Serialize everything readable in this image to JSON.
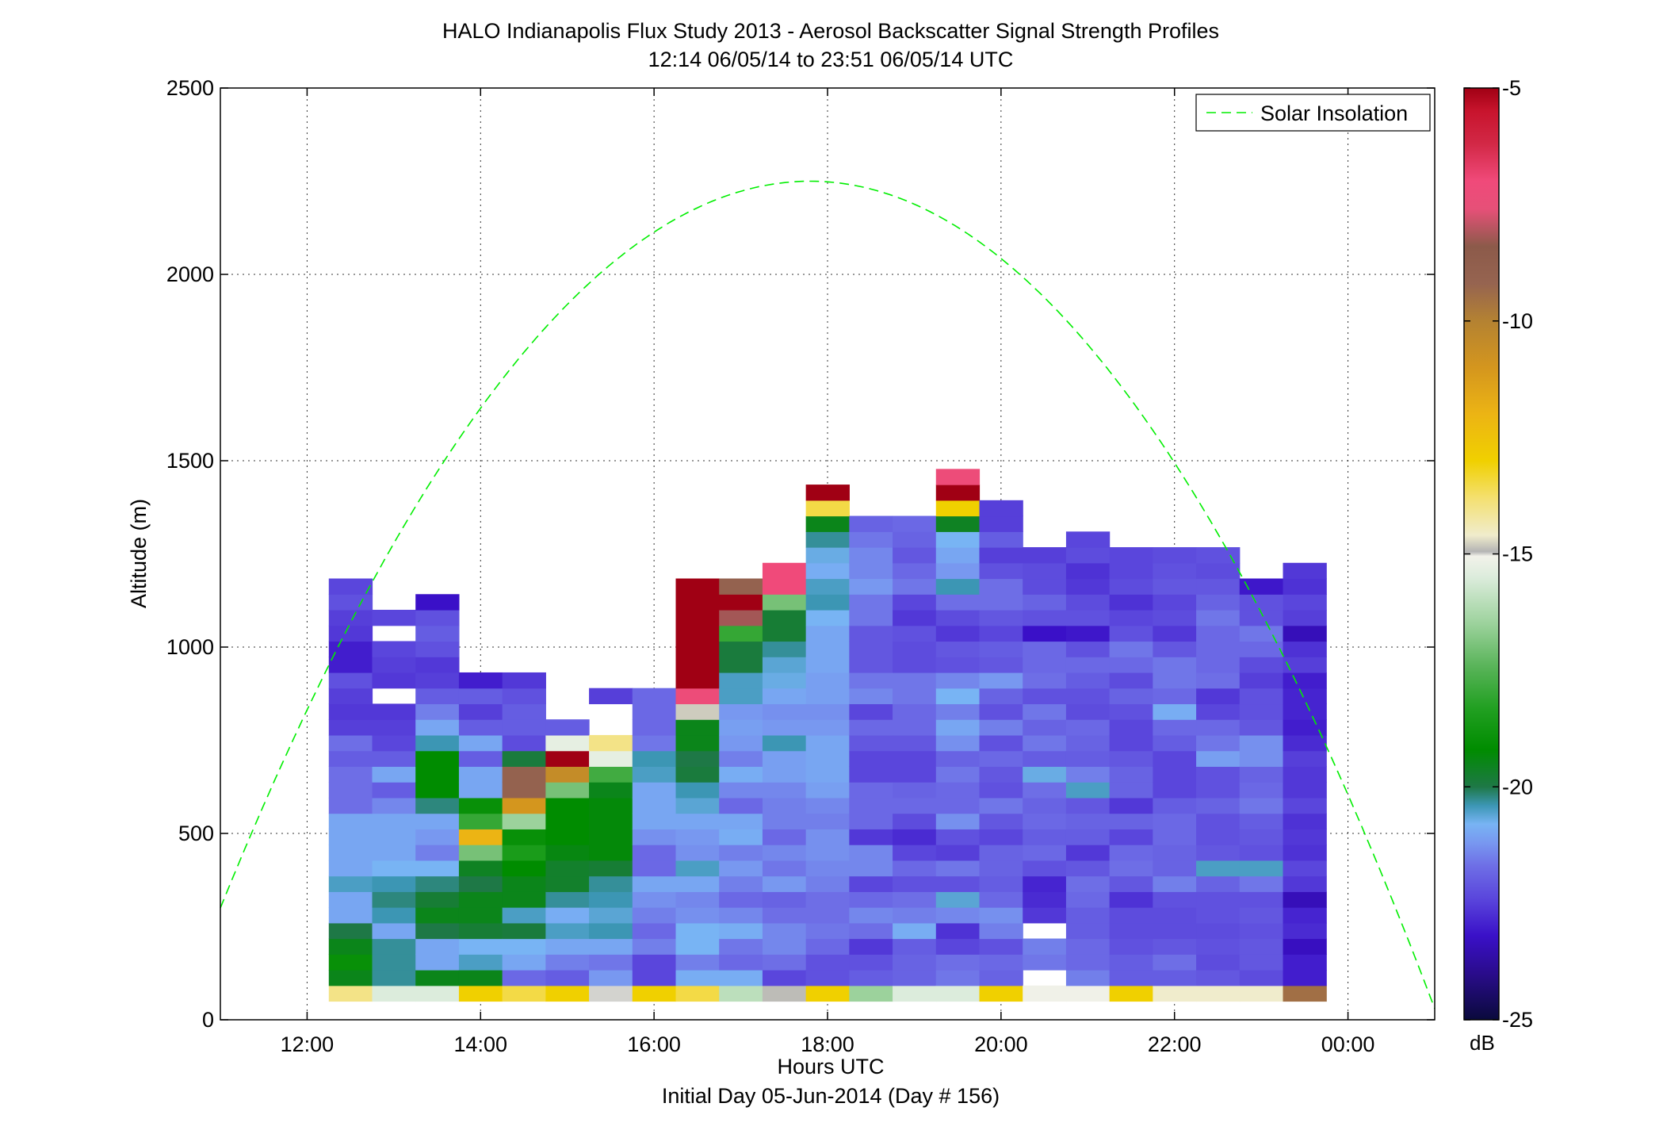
{
  "chart_data": {
    "type": "heatmap",
    "title": "HALO Indianapolis Flux Study 2013 - Aerosol Backscatter Signal Strength Profiles",
    "subtitle": "12:14 06/05/14 to 23:51 06/05/14  UTC",
    "xlabel": "Hours UTC",
    "xlabel2": "Initial Day 05-Jun-2014 (Day # 156)",
    "ylabel": "Altitude (m)",
    "xlim": [
      11,
      25
    ],
    "ylim": [
      0,
      2500
    ],
    "grid": true,
    "x_ticks": [
      {
        "value": 12,
        "label": "12:00"
      },
      {
        "value": 14,
        "label": "14:00"
      },
      {
        "value": 16,
        "label": "16:00"
      },
      {
        "value": 18,
        "label": "18:00"
      },
      {
        "value": 20,
        "label": "20:00"
      },
      {
        "value": 22,
        "label": "22:00"
      },
      {
        "value": 24,
        "label": "00:00"
      }
    ],
    "y_ticks": [
      {
        "value": 0,
        "label": "0"
      },
      {
        "value": 500,
        "label": "500"
      },
      {
        "value": 1000,
        "label": "1000"
      },
      {
        "value": 1500,
        "label": "1500"
      },
      {
        "value": 2000,
        "label": "2000"
      },
      {
        "value": 2500,
        "label": "2500"
      }
    ],
    "legend": {
      "placement": "top-right",
      "entries": [
        {
          "name": "Solar Insolation",
          "style": "dashed",
          "color": "#00ee00"
        }
      ]
    },
    "solar_insolation": {
      "x_start": 11,
      "x_end": 25,
      "peak_x": 17.8,
      "peak_y": 2250,
      "y_at_start": 300,
      "y_at_end": 30
    },
    "colorbar": {
      "label": "dB",
      "vmin": -25,
      "vmax": -5,
      "ticks": [
        {
          "value": -5,
          "label": "-5"
        },
        {
          "value": -10,
          "label": "-10"
        },
        {
          "value": -15,
          "label": "-15"
        },
        {
          "value": -20,
          "label": "-20"
        },
        {
          "value": -25,
          "label": "-25"
        }
      ],
      "stops": [
        [
          -25,
          "#0a0a3c"
        ],
        [
          -24,
          "#2a0c8c"
        ],
        [
          -23.2,
          "#3a10c8"
        ],
        [
          -22.4,
          "#5a46dc"
        ],
        [
          -21.7,
          "#6e6ee6"
        ],
        [
          -21.2,
          "#7898f0"
        ],
        [
          -20.8,
          "#78b4f4"
        ],
        [
          -20.4,
          "#3c96b4"
        ],
        [
          -20,
          "#1e7846"
        ],
        [
          -19.2,
          "#008c00"
        ],
        [
          -18.3,
          "#22a022"
        ],
        [
          -17.4,
          "#5ab45a"
        ],
        [
          -16.5,
          "#9cd29c"
        ],
        [
          -15.5,
          "#dcecdc"
        ],
        [
          -15.05,
          "#f2f2ea"
        ],
        [
          -14.95,
          "#b4b4b4"
        ],
        [
          -14.6,
          "#f0eccc"
        ],
        [
          -13.8,
          "#f4e070"
        ],
        [
          -13,
          "#f0d000"
        ],
        [
          -12,
          "#ecb414"
        ],
        [
          -11,
          "#d4961e"
        ],
        [
          -10,
          "#b48232"
        ],
        [
          -9.2,
          "#966450"
        ],
        [
          -8.4,
          "#8c5a4a"
        ],
        [
          -7.6,
          "#e65078"
        ],
        [
          -7,
          "#f04a7a"
        ],
        [
          -6.2,
          "#d22846"
        ],
        [
          -5.5,
          "#c8142d"
        ],
        [
          -5,
          "#a00014"
        ]
      ]
    },
    "cell_height_m": 42,
    "row_bottoms_m": [
      50,
      92,
      134,
      176,
      218,
      260,
      302,
      344,
      386,
      428,
      470,
      512,
      554,
      596,
      638,
      680,
      722,
      764,
      806,
      848,
      890,
      932,
      974,
      1016,
      1058,
      1100,
      1142,
      1184,
      1226,
      1268,
      1310,
      1352,
      1394,
      1436,
      1478,
      1520
    ],
    "columns": [
      {
        "time_start": 12.25,
        "time_end": 12.75,
        "db": [
          -14,
          -19.5,
          -19,
          -19.5,
          -20,
          -21,
          -21,
          -20.5,
          -21,
          -21,
          -21,
          -21,
          -21.7,
          -21.7,
          -21.7,
          -22,
          -21.7,
          -22.5,
          -22.6,
          -22.5,
          -22.2,
          -23,
          -23,
          -22.6,
          -22.5,
          -22.2,
          -22.4
        ]
      },
      {
        "time_start": 12.75,
        "time_end": 13.25,
        "db": [
          -15.5,
          -20.3,
          -20.3,
          -20.3,
          -21,
          -20.4,
          -20.2,
          -20.4,
          -20.8,
          -21,
          -21,
          -21,
          -21.4,
          -22,
          -21,
          -22,
          -22.4,
          -22.5,
          -22.6,
          null,
          -22.6,
          -22.5,
          -22.4,
          null,
          -22.4
        ]
      },
      {
        "time_start": 13.25,
        "time_end": 13.75,
        "db": [
          -15.5,
          -19.5,
          -21,
          -21,
          -20,
          -19.5,
          -19.8,
          -20.2,
          -20.8,
          -21.5,
          -21.2,
          -21,
          -20.2,
          -19.2,
          -19.2,
          -19.2,
          -20.4,
          -21,
          -21.5,
          -22,
          -22.5,
          -22.6,
          -22.2,
          -22,
          -22.2,
          -23.2
        ]
      },
      {
        "time_start": 13.75,
        "time_end": 14.25,
        "db": [
          -13,
          -19.5,
          -20.5,
          -20.8,
          -19.8,
          -19.5,
          -19.5,
          -20,
          -19.6,
          -17,
          -12,
          -18,
          -19,
          -21,
          -21,
          -22,
          -21,
          -22,
          -22.5,
          -22,
          -23
        ]
      },
      {
        "time_start": 14.25,
        "time_end": 14.75,
        "db": [
          -13.5,
          -21.8,
          -21,
          -20.8,
          -19.9,
          -20.5,
          -19.5,
          -19.5,
          -19.2,
          -18.5,
          -19,
          -16.5,
          -11,
          -9,
          -9,
          -19.9,
          -22.3,
          -22,
          -22,
          -22.2,
          -22.6
        ]
      },
      {
        "time_start": 14.75,
        "time_end": 15.25,
        "db": [
          -13,
          -22,
          -21.5,
          -21,
          -20.5,
          -20.9,
          -20.3,
          -19.7,
          -19.7,
          -19.4,
          -19.2,
          -19.2,
          -19.2,
          -17,
          -10.5,
          -5,
          -15.3,
          -22
        ]
      },
      {
        "time_start": 15.25,
        "time_end": 15.75,
        "db": [
          -15,
          -21.2,
          -21.6,
          -21,
          -20.4,
          -20.6,
          -20.4,
          -20.3,
          -19.8,
          -19.3,
          -19.3,
          -19.3,
          -19.3,
          -19.5,
          -17.8,
          -15.3,
          -14,
          null,
          null,
          -22.5
        ]
      },
      {
        "time_start": 15.75,
        "time_end": 16.25,
        "db": [
          -13,
          -22.4,
          -22.4,
          -21.5,
          -21.8,
          -21.5,
          -21.3,
          -21,
          -21.8,
          -21.8,
          -21.3,
          -21,
          -21,
          -21,
          -20.5,
          -20.4,
          -21.6,
          -21.8,
          -21.8,
          -21.8
        ]
      },
      {
        "time_start": 16.25,
        "time_end": 16.75,
        "db": [
          -13.5,
          -20.9,
          -21.5,
          -20.8,
          -20.8,
          -21.3,
          -21.4,
          -21,
          -20.5,
          -21.3,
          -21.2,
          -21,
          -20.6,
          -20.4,
          -19.9,
          -20,
          -19.5,
          -19.5,
          -14.8,
          -7.2,
          -5,
          -5,
          -5,
          -5,
          -5,
          -5,
          -5
        ]
      },
      {
        "time_start": 16.75,
        "time_end": 17.25,
        "db": [
          -16,
          -20.9,
          -21.8,
          -21.6,
          -20.9,
          -21.4,
          -21.8,
          -21.5,
          -21.2,
          -21.5,
          -20.9,
          -21,
          -21.8,
          -21.4,
          -20.9,
          -21.5,
          -21.2,
          -21.1,
          -21.2,
          -20.5,
          -20.5,
          -19.9,
          -19.9,
          -18,
          -8.2,
          -5,
          -9
        ]
      },
      {
        "time_start": 17.25,
        "time_end": 17.75,
        "db": [
          -14.9,
          -22.4,
          -21.7,
          -21.4,
          -21.4,
          -21.7,
          -21.9,
          -21.2,
          -21.6,
          -21.4,
          -21.8,
          -21.5,
          -21.5,
          -21.4,
          -21.1,
          -21.1,
          -20.4,
          -21.2,
          -21.3,
          -21,
          -20.7,
          -20.6,
          -20.3,
          -19.8,
          -19.8,
          -17,
          -7,
          -7
        ]
      },
      {
        "time_start": 17.75,
        "time_end": 18.25,
        "db": [
          -13,
          -22.2,
          -22.2,
          -21.8,
          -21.6,
          -21.7,
          -21.7,
          -21.5,
          -21.4,
          -21.3,
          -21.3,
          -21.5,
          -21.4,
          -21.1,
          -21,
          -21,
          -21,
          -21.2,
          -21.3,
          -21.1,
          -21.1,
          -21,
          -21,
          -21,
          -20.8,
          -20.4,
          -20.5,
          -20.9,
          -20.7,
          -20.3,
          -19.5,
          -13.5,
          -5
        ]
      },
      {
        "time_start": 18.25,
        "time_end": 18.75,
        "db": [
          -16.5,
          -22,
          -22.2,
          -22.6,
          -21.7,
          -21.4,
          -21.8,
          -22.4,
          -21.4,
          -21.4,
          -22.6,
          -21.8,
          -21.8,
          -21.8,
          -22.4,
          -22.4,
          -22.1,
          -21.8,
          -22.4,
          -21.4,
          -21.6,
          -22.1,
          -22.1,
          -22.1,
          -21.6,
          -21.6,
          -21.2,
          -21.4,
          -21.4,
          -21.6,
          -21.9
        ]
      },
      {
        "time_start": 18.75,
        "time_end": 19.25,
        "db": [
          -15.5,
          -21.9,
          -21.9,
          -22,
          -20.9,
          -21.5,
          -21.7,
          -22.2,
          -21.8,
          -22.4,
          -22.8,
          -22.3,
          -21.8,
          -21.9,
          -22.4,
          -22.4,
          -22.1,
          -21.8,
          -21.8,
          -21.6,
          -21.6,
          -22.3,
          -22.3,
          -22.2,
          -22.6,
          -22.4,
          -21.6,
          -21.8,
          -22.1,
          -21.9,
          -21.8
        ]
      },
      {
        "time_start": 19.25,
        "time_end": 19.75,
        "db": [
          -15.5,
          -21.6,
          -21.7,
          -22.4,
          -22.7,
          -21.4,
          -20.6,
          -22.2,
          -21.6,
          -22.5,
          -22.2,
          -21.3,
          -21.8,
          -21.8,
          -21.6,
          -21.9,
          -21.3,
          -21,
          -21.5,
          -20.8,
          -21.4,
          -22.2,
          -22.1,
          -22.6,
          -22.3,
          -21.7,
          -20.4,
          -21.2,
          -21,
          -20.8,
          -19.6,
          -13,
          -5,
          -7.2
        ]
      },
      {
        "time_start": 19.75,
        "time_end": 20.25,
        "db": [
          -13,
          -21.9,
          -21.8,
          -22.2,
          -21.5,
          -21.3,
          -21.8,
          -22,
          -21.9,
          -21.9,
          -22.4,
          -22.1,
          -21.6,
          -22.2,
          -22.1,
          -21.8,
          -22.2,
          -21.5,
          -22.2,
          -21.9,
          -21.2,
          -22.1,
          -22,
          -22.4,
          -22.1,
          -21.7,
          -21.7,
          -22.2,
          -22.5,
          -22,
          -22.5,
          -22.5
        ]
      },
      {
        "time_start": 20.25,
        "time_end": 20.75,
        "db": [
          -15.1,
          null,
          -21.6,
          -21.5,
          null,
          -22.6,
          -22.8,
          -22.9,
          -22.2,
          -21.8,
          -22,
          -21.8,
          -21.9,
          -21.7,
          -20.7,
          -22,
          -21.6,
          -21.9,
          -21.6,
          -22.2,
          -21.7,
          -21.8,
          -21.8,
          -23.2,
          -22.2,
          -21.9,
          -22.3,
          -22.3,
          -22.5
        ]
      },
      {
        "time_start": 20.75,
        "time_end": 21.25,
        "db": [
          -15.1,
          -21.5,
          -21.8,
          -21.8,
          -22,
          -22,
          -21.8,
          -21.7,
          -22.1,
          -22.6,
          -22,
          -21.9,
          -22.1,
          -20.5,
          -21.5,
          -22,
          -21.9,
          -21.8,
          -22.3,
          -22.2,
          -22,
          -21.8,
          -22.2,
          -23.1,
          -22.2,
          -22.3,
          -22.6,
          -22.7,
          -22.3,
          -22.4
        ]
      },
      {
        "time_start": 21.25,
        "time_end": 21.75,
        "db": [
          -13,
          -22,
          -22,
          -22.2,
          -22.3,
          -22.3,
          -22.7,
          -22.1,
          -21.7,
          -21.8,
          -22.4,
          -21.9,
          -22.6,
          -21.9,
          -21.9,
          -22.1,
          -22.4,
          -22.4,
          -22.2,
          -21.9,
          -22.3,
          -21.8,
          -21.6,
          -22.2,
          -22.4,
          -22.7,
          -22.3,
          -22.4,
          -22.4
        ]
      },
      {
        "time_start": 21.75,
        "time_end": 22.25,
        "db": [
          -14.6,
          -22,
          -21.7,
          -22.1,
          -22.3,
          -22.3,
          -22.2,
          -21.5,
          -21.9,
          -21.9,
          -21.8,
          -21.8,
          -22,
          -22.4,
          -22.4,
          -22.4,
          -22,
          -21.8,
          -20.9,
          -21.8,
          -21.6,
          -21.6,
          -22.1,
          -22.6,
          -22.3,
          -22.4,
          -22.1,
          -22.2,
          -22.3
        ]
      },
      {
        "time_start": 22.25,
        "time_end": 22.75,
        "db": [
          -14.6,
          -22.1,
          -22.3,
          -22.2,
          -22.3,
          -22.2,
          -22.2,
          -21.9,
          -20.5,
          -22.1,
          -22.2,
          -22.2,
          -21.9,
          -22.2,
          -22.2,
          -21.1,
          -21.6,
          -21.8,
          -22.4,
          -22.6,
          -21.7,
          -21.8,
          -21.8,
          -21.8,
          -21.6,
          -21.9,
          -22.1,
          -22.3,
          -22.2
        ]
      },
      {
        "time_start": 22.75,
        "time_end": 23.25,
        "db": [
          -14.6,
          -22.3,
          -22.1,
          -22.1,
          -22.2,
          -22.1,
          -22.2,
          -21.6,
          -20.5,
          -22.2,
          -22.1,
          -22,
          -21.6,
          -21.8,
          -21.9,
          -21.3,
          -21.3,
          -22.1,
          -22.2,
          -22.2,
          -22.5,
          -22.3,
          -21.8,
          -21.6,
          -22.2,
          -22.2,
          -23.1
        ]
      },
      {
        "time_start": 23.25,
        "time_end": 23.75,
        "db": [
          -9.5,
          -23,
          -23,
          -23.3,
          -22.8,
          -22.9,
          -23.4,
          -22.6,
          -22.4,
          -22.7,
          -22.6,
          -22.7,
          -22.4,
          -22.6,
          -22.6,
          -22.5,
          -22.8,
          -23,
          -22.9,
          -22.9,
          -23,
          -22.5,
          -22.7,
          -23.4,
          -22.5,
          -22.4,
          -22.7,
          -22.6
        ]
      }
    ]
  }
}
